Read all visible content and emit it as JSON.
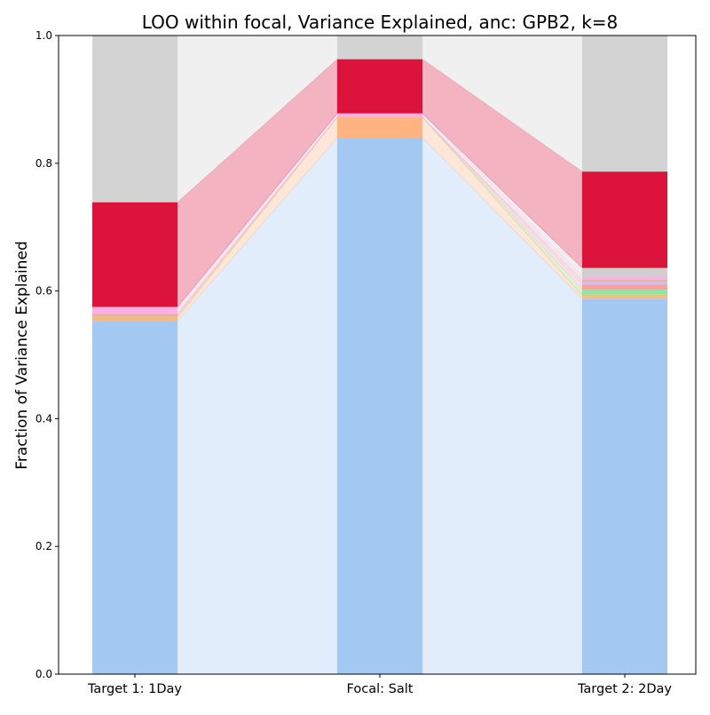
{
  "chart_data": {
    "type": "bar",
    "stacked": true,
    "title": "LOO within focal, Variance Explained, anc: GPB2, k=8",
    "xlabel": "",
    "ylabel": "Fraction of Variance Explained",
    "categories": [
      "Target 1: 1Day",
      "Focal: Salt",
      "Target 2: 2Day"
    ],
    "ylim": [
      0,
      1
    ],
    "yticks": [
      0.0,
      0.2,
      0.4,
      0.6,
      0.8,
      1.0
    ],
    "ytick_labels": [
      "0.0",
      "0.2",
      "0.4",
      "0.6",
      "0.8",
      "1.0"
    ],
    "grid": false,
    "legend": "none",
    "connecting_bands": true,
    "series": [
      {
        "values": [
          0.553,
          0.84,
          0.588
        ],
        "color": "#a3c8f2"
      },
      {
        "values": [
          0.004,
          0.032,
          0.004
        ],
        "color": "#ffb482"
      },
      {
        "values": [
          0.003,
          0.0,
          0.003
        ],
        "color": "#d9c77a"
      },
      {
        "values": [
          0.0,
          0.0,
          0.007
        ],
        "color": "#8de5a1"
      },
      {
        "values": [
          0.003,
          0.0,
          0.008
        ],
        "color": "#ff9f9b"
      },
      {
        "values": [
          0.0,
          0.0,
          0.004
        ],
        "color": "#d0bbff"
      },
      {
        "values": [
          0.002,
          0.0,
          0.004
        ],
        "color": "#debb9b"
      },
      {
        "values": [
          0.01,
          0.006,
          0.005
        ],
        "color": "#fab0e4"
      },
      {
        "values": [
          0.0,
          0.0,
          0.013
        ],
        "color": "#cfcfcf"
      },
      {
        "values": [
          0.164,
          0.085,
          0.151
        ],
        "color": "#dc143c"
      },
      {
        "values": [
          0.261,
          0.037,
          0.213
        ],
        "color": "#d3d3d3"
      }
    ]
  }
}
